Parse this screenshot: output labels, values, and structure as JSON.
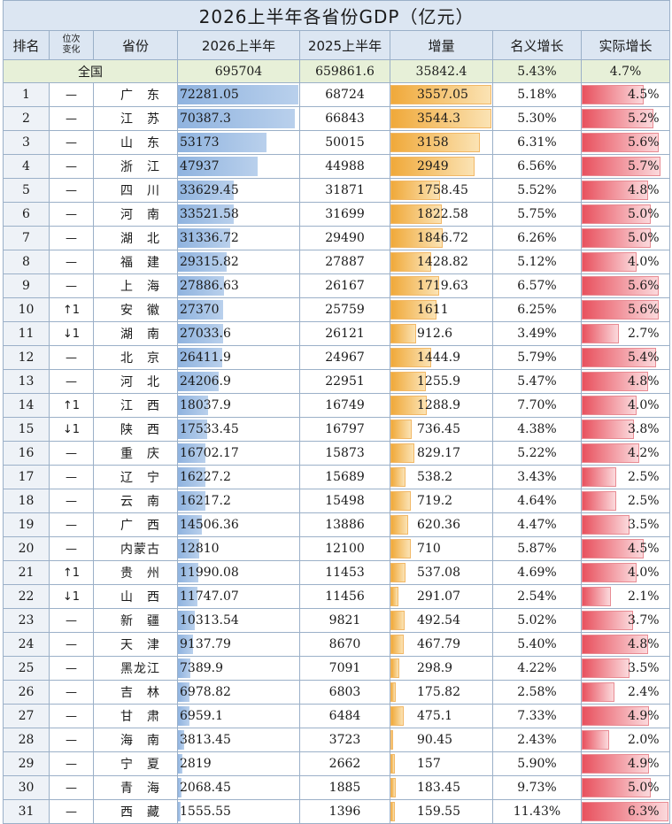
{
  "title": "2026上半年各省份GDP（亿元）",
  "headers": {
    "rank": "排名",
    "change": "位次\n变化",
    "province": "省份",
    "h2026": "2026上半年",
    "h2025": "2025上半年",
    "increase": "增量",
    "nominal": "名义增长",
    "real": "实际增长"
  },
  "national": {
    "label": "全国",
    "h2026": "695704",
    "h2025": "659861.6",
    "increase": "35842.4",
    "nominal": "5.43%",
    "real": "4.7%"
  },
  "rows": [
    {
      "rank": "1",
      "change": "—",
      "province": "广东",
      "h2026": "72281.05",
      "h2025": "68724",
      "increase": "3557.05",
      "nominal": "5.18%",
      "real": "4.5%",
      "v2026": 72281.05,
      "vinc": 3557.05,
      "vreal": 4.5
    },
    {
      "rank": "2",
      "change": "—",
      "province": "江苏",
      "h2026": "70387.3",
      "h2025": "66843",
      "increase": "3544.3",
      "nominal": "5.30%",
      "real": "5.2%",
      "v2026": 70387.3,
      "vinc": 3544.3,
      "vreal": 5.2
    },
    {
      "rank": "3",
      "change": "—",
      "province": "山东",
      "h2026": "53173",
      "h2025": "50015",
      "increase": "3158",
      "nominal": "6.31%",
      "real": "5.6%",
      "v2026": 53173,
      "vinc": 3158,
      "vreal": 5.6
    },
    {
      "rank": "4",
      "change": "—",
      "province": "浙江",
      "h2026": "47937",
      "h2025": "44988",
      "increase": "2949",
      "nominal": "6.56%",
      "real": "5.7%",
      "v2026": 47937,
      "vinc": 2949,
      "vreal": 5.7
    },
    {
      "rank": "5",
      "change": "—",
      "province": "四川",
      "h2026": "33629.45",
      "h2025": "31871",
      "increase": "1758.45",
      "nominal": "5.52%",
      "real": "4.8%",
      "v2026": 33629.45,
      "vinc": 1758.45,
      "vreal": 4.8
    },
    {
      "rank": "6",
      "change": "—",
      "province": "河南",
      "h2026": "33521.58",
      "h2025": "31699",
      "increase": "1822.58",
      "nominal": "5.75%",
      "real": "5.0%",
      "v2026": 33521.58,
      "vinc": 1822.58,
      "vreal": 5.0
    },
    {
      "rank": "7",
      "change": "—",
      "province": "湖北",
      "h2026": "31336.72",
      "h2025": "29490",
      "increase": "1846.72",
      "nominal": "6.26%",
      "real": "5.0%",
      "v2026": 31336.72,
      "vinc": 1846.72,
      "vreal": 5.0
    },
    {
      "rank": "8",
      "change": "—",
      "province": "福建",
      "h2026": "29315.82",
      "h2025": "27887",
      "increase": "1428.82",
      "nominal": "5.12%",
      "real": "4.0%",
      "v2026": 29315.82,
      "vinc": 1428.82,
      "vreal": 4.0
    },
    {
      "rank": "9",
      "change": "—",
      "province": "上海",
      "h2026": "27886.63",
      "h2025": "26167",
      "increase": "1719.63",
      "nominal": "6.57%",
      "real": "5.6%",
      "v2026": 27886.63,
      "vinc": 1719.63,
      "vreal": 5.6
    },
    {
      "rank": "10",
      "change": "↑1",
      "province": "安徽",
      "h2026": "27370",
      "h2025": "25759",
      "increase": "1611",
      "nominal": "6.25%",
      "real": "5.6%",
      "v2026": 27370,
      "vinc": 1611,
      "vreal": 5.6
    },
    {
      "rank": "11",
      "change": "↓1",
      "province": "湖南",
      "h2026": "27033.6",
      "h2025": "26121",
      "increase": "912.6",
      "nominal": "3.49%",
      "real": "2.7%",
      "v2026": 27033.6,
      "vinc": 912.6,
      "vreal": 2.7
    },
    {
      "rank": "12",
      "change": "—",
      "province": "北京",
      "h2026": "26411.9",
      "h2025": "24967",
      "increase": "1444.9",
      "nominal": "5.79%",
      "real": "5.4%",
      "v2026": 26411.9,
      "vinc": 1444.9,
      "vreal": 5.4
    },
    {
      "rank": "13",
      "change": "—",
      "province": "河北",
      "h2026": "24206.9",
      "h2025": "22951",
      "increase": "1255.9",
      "nominal": "5.47%",
      "real": "4.8%",
      "v2026": 24206.9,
      "vinc": 1255.9,
      "vreal": 4.8
    },
    {
      "rank": "14",
      "change": "↑1",
      "province": "江西",
      "h2026": "18037.9",
      "h2025": "16749",
      "increase": "1288.9",
      "nominal": "7.70%",
      "real": "4.0%",
      "v2026": 18037.9,
      "vinc": 1288.9,
      "vreal": 4.0
    },
    {
      "rank": "15",
      "change": "↓1",
      "province": "陕西",
      "h2026": "17533.45",
      "h2025": "16797",
      "increase": "736.45",
      "nominal": "4.38%",
      "real": "3.8%",
      "v2026": 17533.45,
      "vinc": 736.45,
      "vreal": 3.8
    },
    {
      "rank": "16",
      "change": "—",
      "province": "重庆",
      "h2026": "16702.17",
      "h2025": "15873",
      "increase": "829.17",
      "nominal": "5.22%",
      "real": "4.2%",
      "v2026": 16702.17,
      "vinc": 829.17,
      "vreal": 4.2
    },
    {
      "rank": "17",
      "change": "—",
      "province": "辽宁",
      "h2026": "16227.2",
      "h2025": "15689",
      "increase": "538.2",
      "nominal": "3.43%",
      "real": "2.5%",
      "v2026": 16227.2,
      "vinc": 538.2,
      "vreal": 2.5
    },
    {
      "rank": "18",
      "change": "—",
      "province": "云南",
      "h2026": "16217.2",
      "h2025": "15498",
      "increase": "719.2",
      "nominal": "4.64%",
      "real": "2.5%",
      "v2026": 16217.2,
      "vinc": 719.2,
      "vreal": 2.5
    },
    {
      "rank": "19",
      "change": "—",
      "province": "广西",
      "h2026": "14506.36",
      "h2025": "13886",
      "increase": "620.36",
      "nominal": "4.47%",
      "real": "3.5%",
      "v2026": 14506.36,
      "vinc": 620.36,
      "vreal": 3.5
    },
    {
      "rank": "20",
      "change": "—",
      "province": "内蒙古",
      "h2026": "12810",
      "h2025": "12100",
      "increase": "710",
      "nominal": "5.87%",
      "real": "4.5%",
      "v2026": 12810,
      "vinc": 710,
      "vreal": 4.5
    },
    {
      "rank": "21",
      "change": "↑1",
      "province": "贵州",
      "h2026": "11990.08",
      "h2025": "11453",
      "increase": "537.08",
      "nominal": "4.69%",
      "real": "4.0%",
      "v2026": 11990.08,
      "vinc": 537.08,
      "vreal": 4.0
    },
    {
      "rank": "22",
      "change": "↓1",
      "province": "山西",
      "h2026": "11747.07",
      "h2025": "11456",
      "increase": "291.07",
      "nominal": "2.54%",
      "real": "2.1%",
      "v2026": 11747.07,
      "vinc": 291.07,
      "vreal": 2.1
    },
    {
      "rank": "23",
      "change": "—",
      "province": "新疆",
      "h2026": "10313.54",
      "h2025": "9821",
      "increase": "492.54",
      "nominal": "5.02%",
      "real": "3.7%",
      "v2026": 10313.54,
      "vinc": 492.54,
      "vreal": 3.7
    },
    {
      "rank": "24",
      "change": "—",
      "province": "天津",
      "h2026": "9137.79",
      "h2025": "8670",
      "increase": "467.79",
      "nominal": "5.40%",
      "real": "4.8%",
      "v2026": 9137.79,
      "vinc": 467.79,
      "vreal": 4.8
    },
    {
      "rank": "25",
      "change": "—",
      "province": "黑龙江",
      "h2026": "7389.9",
      "h2025": "7091",
      "increase": "298.9",
      "nominal": "4.22%",
      "real": "3.5%",
      "v2026": 7389.9,
      "vinc": 298.9,
      "vreal": 3.5
    },
    {
      "rank": "26",
      "change": "—",
      "province": "吉林",
      "h2026": "6978.82",
      "h2025": "6803",
      "increase": "175.82",
      "nominal": "2.58%",
      "real": "2.4%",
      "v2026": 6978.82,
      "vinc": 175.82,
      "vreal": 2.4
    },
    {
      "rank": "27",
      "change": "—",
      "province": "甘肃",
      "h2026": "6959.1",
      "h2025": "6484",
      "increase": "475.1",
      "nominal": "7.33%",
      "real": "4.9%",
      "v2026": 6959.1,
      "vinc": 475.1,
      "vreal": 4.9
    },
    {
      "rank": "28",
      "change": "—",
      "province": "海南",
      "h2026": "3813.45",
      "h2025": "3723",
      "increase": "90.45",
      "nominal": "2.43%",
      "real": "2.0%",
      "v2026": 3813.45,
      "vinc": 90.45,
      "vreal": 2.0
    },
    {
      "rank": "29",
      "change": "—",
      "province": "宁夏",
      "h2026": "2819",
      "h2025": "2662",
      "increase": "157",
      "nominal": "5.90%",
      "real": "4.9%",
      "v2026": 2819,
      "vinc": 157,
      "vreal": 4.9
    },
    {
      "rank": "30",
      "change": "—",
      "province": "青海",
      "h2026": "2068.45",
      "h2025": "1885",
      "increase": "183.45",
      "nominal": "9.73%",
      "real": "5.0%",
      "v2026": 2068.45,
      "vinc": 183.45,
      "vreal": 5.0
    },
    {
      "rank": "31",
      "change": "—",
      "province": "西藏",
      "h2026": "1555.55",
      "h2025": "1396",
      "increase": "159.55",
      "nominal": "11.43%",
      "real": "6.3%",
      "v2026": 1555.55,
      "vinc": 159.55,
      "vreal": 6.3
    }
  ],
  "colors": {
    "header_bg": "#dce6f2",
    "national_bg": "#e7f0d8",
    "bar_blue": "#8fb3df",
    "bar_orange": "#f0a93a",
    "bar_red": "#e8515e"
  }
}
